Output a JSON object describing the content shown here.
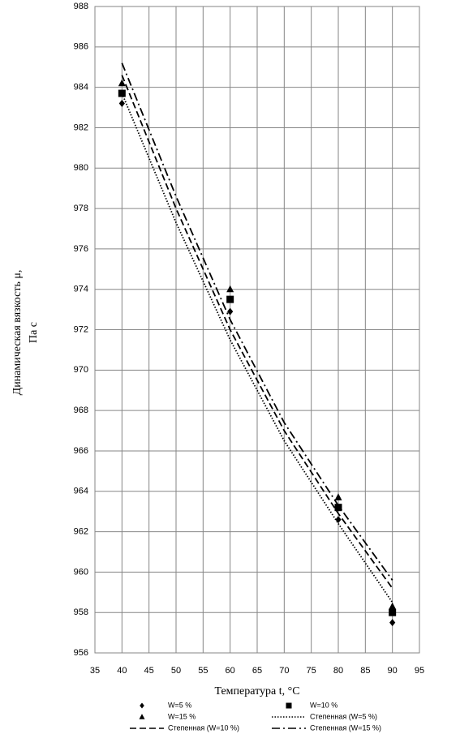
{
  "chart_data": {
    "type": "scatter",
    "x_label": "Температура t, °C",
    "y_label": [
      "Динамическая вязкость μ,",
      "Па с"
    ],
    "xlim": [
      35,
      95
    ],
    "xticks": [
      35,
      40,
      45,
      50,
      55,
      60,
      65,
      70,
      75,
      80,
      85,
      90,
      95
    ],
    "ylim": [
      956,
      988
    ],
    "yticks": [
      956,
      958,
      960,
      962,
      964,
      966,
      968,
      970,
      972,
      974,
      976,
      978,
      980,
      982,
      984,
      986,
      988
    ],
    "grid": true,
    "series": [
      {
        "name": "W=5 %",
        "type": "scatter",
        "marker": "diamond",
        "color": "#000000",
        "x": [
          40,
          60,
          80,
          90
        ],
        "values": [
          983.2,
          972.9,
          962.6,
          957.5
        ]
      },
      {
        "name": "W=10 %",
        "type": "scatter",
        "marker": "square",
        "color": "#000000",
        "x": [
          40,
          60,
          80,
          90
        ],
        "values": [
          983.7,
          973.5,
          963.2,
          958.0
        ]
      },
      {
        "name": "W=15 %",
        "type": "scatter",
        "marker": "triangle",
        "color": "#000000",
        "x": [
          40,
          60,
          80,
          90
        ],
        "values": [
          984.2,
          974.0,
          963.7,
          958.3
        ]
      },
      {
        "name": "Степенная (W=5 %)",
        "type": "line",
        "line_style": "dotted",
        "color": "#000000",
        "x": [
          40,
          50,
          60,
          70,
          80,
          90
        ],
        "values": [
          983.7,
          977.3,
          971.5,
          966.5,
          962.4,
          958.5
        ]
      },
      {
        "name": "Степенная (W=10 %)",
        "type": "line",
        "line_style": "dashed",
        "color": "#000000",
        "x": [
          40,
          50,
          60,
          70,
          80,
          90
        ],
        "values": [
          984.6,
          978.0,
          972.0,
          967.0,
          962.9,
          959.2
        ]
      },
      {
        "name": "Степенная (W=15 %)",
        "type": "line",
        "line_style": "dashdot",
        "color": "#000000",
        "x": [
          40,
          50,
          60,
          70,
          80,
          90
        ],
        "values": [
          985.2,
          978.6,
          972.5,
          967.4,
          963.3,
          959.6
        ]
      }
    ]
  }
}
